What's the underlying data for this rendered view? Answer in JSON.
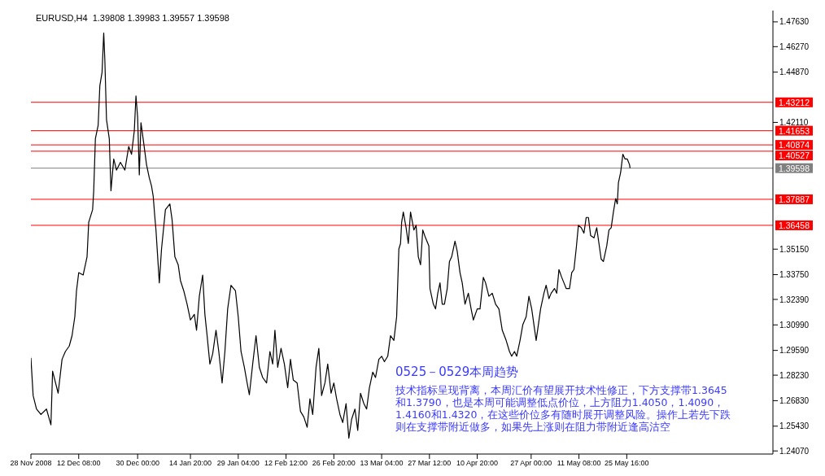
{
  "chart_data": {
    "type": "line",
    "title": "EURUSD,H4  1.39808 1.39983 1.39557 1.39598",
    "annotations": [
      "0525－0529本周趋势",
      "技术指标呈现背离，本周汇价有望展开技术性修正，下方支撑带1.3645和1.3790，也是本周可能调整低点价位，上方阻力1.4050，1.4090，1.4160和1.4320，在这些价位多有随时展开调整风险。操作上若先下跌则在支撑带附近做多，如果先上涨则在阻力带附近逢高沽空"
    ],
    "x": [
      "2008-11-28T00:00",
      "2008-11-28T16:00",
      "2008-11-29T16:00",
      "2008-12-01T00:00",
      "2008-12-02T16:00",
      "2008-12-04T00:00",
      "2008-12-04T12:00",
      "2008-12-06T04:00",
      "2008-12-07T08:00",
      "2008-12-08T08:00",
      "2008-12-09T12:00",
      "2008-12-10T08:00",
      "2008-12-11T04:00",
      "2008-12-11T16:00",
      "2008-12-12T08:00",
      "2008-12-13T16:00",
      "2008-12-14T20:00",
      "2008-12-15T08:00",
      "2008-12-16T12:00",
      "2008-12-16T20:00",
      "2008-12-17T08:00",
      "2008-12-18T04:00",
      "2008-12-18T16:00",
      "2008-12-19T08:00",
      "2008-12-19T20:00",
      "2008-12-20T04:00",
      "2008-12-20T16:00",
      "2008-12-21T12:00",
      "2008-12-22T00:00",
      "2008-12-22T20:00",
      "2008-12-23T16:00",
      "2008-12-24T20:00",
      "2008-12-26T04:00",
      "2008-12-27T08:00",
      "2008-12-28T04:00",
      "2008-12-29T00:00",
      "2008-12-29T12:00",
      "2008-12-30T00:00",
      "2008-12-30T12:00",
      "2008-12-31T00:00",
      "2008-12-31T20:00",
      "2009-01-01T16:00",
      "2009-01-02T12:00",
      "2009-01-03T04:00",
      "2009-01-03T16:00",
      "2009-01-04T04:00",
      "2009-01-04T12:00",
      "2009-01-05T12:00",
      "2009-01-06T04:00",
      "2009-01-07T08:00",
      "2009-01-08T16:00",
      "2009-01-09T08:00",
      "2009-01-10T04:00",
      "2009-01-11T04:00",
      "2009-01-11T20:00",
      "2009-01-12T20:00",
      "2009-01-13T20:00",
      "2009-01-14T20:00",
      "2009-01-16T00:00",
      "2009-01-16T16:00",
      "2009-01-17T12:00",
      "2009-01-18T12:00",
      "2009-01-19T04:00",
      "2009-01-19T20:00",
      "2009-01-20T16:00",
      "2009-01-21T12:00",
      "2009-01-22T12:00",
      "2009-01-23T08:00",
      "2009-01-24T08:00",
      "2009-01-25T04:00",
      "2009-01-26T00:00",
      "2009-01-27T00:00",
      "2009-01-28T08:00",
      "2009-01-29T04:00",
      "2009-01-30T00:00",
      "2009-01-31T00:00",
      "2009-01-31T20:00",
      "2009-02-01T12:00",
      "2009-02-02T12:00",
      "2009-02-03T12:00",
      "2009-02-04T12:00",
      "2009-02-05T12:00",
      "2009-02-06T16:00",
      "2009-02-07T16:00",
      "2009-02-08T12:00",
      "2009-02-09T04:00",
      "2009-02-10T00:00",
      "2009-02-11T00:00",
      "2009-02-12T00:00",
      "2009-02-13T00:00",
      "2009-02-13T20:00",
      "2009-02-14T16:00",
      "2009-02-15T20:00",
      "2009-02-16T20:00",
      "2009-02-17T20:00",
      "2009-02-18T20:00",
      "2009-02-19T16:00",
      "2009-02-20T12:00",
      "2009-02-21T12:00",
      "2009-02-22T08:00",
      "2009-02-23T04:00",
      "2009-02-24T04:00",
      "2009-02-25T00:00",
      "2009-02-26T00:00",
      "2009-02-26T20:00",
      "2009-02-27T16:00",
      "2009-02-28T16:00",
      "2009-03-01T12:00",
      "2009-03-02T12:00",
      "2009-03-03T08:00",
      "2009-03-04T04:00",
      "2009-03-05T04:00",
      "2009-03-06T00:00",
      "2009-03-06T20:00",
      "2009-03-07T20:00",
      "2009-03-08T16:00",
      "2009-03-09T12:00",
      "2009-03-10T12:00",
      "2009-03-11T08:00",
      "2009-03-12T08:00",
      "2009-03-13T04:00",
      "2009-03-14T00:00",
      "2009-03-15T00:00",
      "2009-03-15T20:00",
      "2009-03-16T20:00",
      "2009-03-17T16:00",
      "2009-03-18T08:00",
      "2009-03-18T20:00",
      "2009-03-19T04:00",
      "2009-03-19T16:00",
      "2009-03-20T12:00",
      "2009-03-21T04:00",
      "2009-03-21T20:00",
      "2009-03-22T20:00",
      "2009-03-23T12:00",
      "2009-03-24T04:00",
      "2009-03-24T20:00",
      "2009-03-25T12:00",
      "2009-03-26T08:00",
      "2009-03-27T08:00",
      "2009-03-27T16:00",
      "2009-03-28T16:00",
      "2009-03-29T08:00",
      "2009-03-30T00:00",
      "2009-03-30T16:00",
      "2009-03-31T08:00",
      "2009-04-01T00:00",
      "2009-04-01T20:00",
      "2009-04-02T12:00",
      "2009-04-03T04:00",
      "2009-04-04T04:00",
      "2009-04-04T20:00",
      "2009-04-05T16:00",
      "2009-04-06T08:00",
      "2009-04-07T04:00",
      "2009-04-08T04:00",
      "2009-04-09T00:00",
      "2009-04-09T16:00",
      "2009-04-10T20:00",
      "2009-04-11T16:00",
      "2009-04-12T16:00",
      "2009-04-13T08:00",
      "2009-04-14T08:00",
      "2009-04-15T08:00",
      "2009-04-16T08:00",
      "2009-04-17T08:00",
      "2009-04-18T08:00",
      "2009-04-19T12:00",
      "2009-04-20T12:00",
      "2009-04-21T04:00",
      "2009-04-22T00:00",
      "2009-04-22T16:00",
      "2009-04-23T16:00",
      "2009-04-24T12:00",
      "2009-04-25T12:00",
      "2009-04-26T08:00",
      "2009-04-27T04:00",
      "2009-04-27T20:00",
      "2009-04-28T12:00",
      "2009-04-29T04:00",
      "2009-04-29T20:00",
      "2009-04-30T20:00",
      "2009-05-01T12:00",
      "2009-05-02T08:00",
      "2009-05-03T00:00",
      "2009-05-04T00:00",
      "2009-05-04T16:00",
      "2009-05-05T08:00",
      "2009-05-06T04:00",
      "2009-05-06T20:00",
      "2009-05-07T12:00",
      "2009-05-08T12:00",
      "2009-05-09T04:00",
      "2009-05-09T20:00",
      "2009-05-10T12:00",
      "2009-05-11T04:00",
      "2009-05-12T00:00",
      "2009-05-12T20:00",
      "2009-05-13T12:00",
      "2009-05-14T04:00",
      "2009-05-14T20:00",
      "2009-05-15T20:00",
      "2009-05-16T16:00",
      "2009-05-17T08:00",
      "2009-05-18T00:00",
      "2009-05-18T16:00",
      "2009-05-19T16:00",
      "2009-05-20T08:00",
      "2009-05-21T00:00",
      "2009-05-21T16:00",
      "2009-05-22T08:00",
      "2009-05-22T20:00",
      "2009-05-23T04:00",
      "2009-05-23T20:00",
      "2009-05-24T12:00",
      "2009-05-25T04:00",
      "2009-05-25T20:00",
      "2009-05-26T12:00",
      "2009-05-26T16:00"
    ],
    "values": [
      1.2918,
      1.2711,
      1.2637,
      1.2607,
      1.2637,
      1.255,
      1.2845,
      1.2724,
      1.291,
      1.2953,
      1.2983,
      1.304,
      1.3144,
      1.3286,
      1.3386,
      1.3373,
      1.3473,
      1.3663,
      1.3732,
      1.3836,
      1.4122,
      1.4196,
      1.4412,
      1.4486,
      1.4702,
      1.4555,
      1.4226,
      1.4122,
      1.3836,
      1.401,
      1.3949,
      1.3992,
      1.3949,
      1.4079,
      1.4036,
      1.4165,
      1.4356,
      1.4239,
      1.3923,
      1.4209,
      1.4096,
      1.3979,
      1.3906,
      1.3862,
      1.3806,
      1.3689,
      1.362,
      1.333,
      1.3516,
      1.3732,
      1.3763,
      1.3676,
      1.3473,
      1.3429,
      1.3343,
      1.3286,
      1.3213,
      1.3126,
      1.3157,
      1.307,
      1.3256,
      1.3373,
      1.3157,
      1.304,
      1.2884,
      1.294,
      1.307,
      1.2953,
      1.278,
      1.2953,
      1.3187,
      1.3317,
      1.3286,
      1.3144,
      1.2953,
      1.2866,
      1.278,
      1.2715,
      1.2884,
      1.304,
      1.2866,
      1.281,
      1.278,
      1.2953,
      1.2884,
      1.307,
      1.2866,
      1.297,
      1.2884,
      1.2754,
      1.291,
      1.2797,
      1.278,
      1.2624,
      1.2594,
      1.2537,
      1.2693,
      1.2607,
      1.2866,
      1.297,
      1.2711,
      1.278,
      1.2884,
      1.2724,
      1.278,
      1.2693,
      1.2607,
      1.2563,
      1.2667,
      1.2477,
      1.2581,
      1.2637,
      1.252,
      1.2724,
      1.2667,
      1.2637,
      1.2754,
      1.284,
      1.281,
      1.291,
      1.2927,
      1.2897,
      1.2927,
      1.304,
      1.3014,
      1.3144,
      1.3516,
      1.3546,
      1.3663,
      1.3719,
      1.3633,
      1.3546,
      1.3719,
      1.362,
      1.3646,
      1.3473,
      1.3429,
      1.362,
      1.3577,
      1.3533,
      1.3299,
      1.3213,
      1.3187,
      1.3273,
      1.333,
      1.3213,
      1.3213,
      1.3299,
      1.3447,
      1.3473,
      1.3559,
      1.3503,
      1.3386,
      1.333,
      1.3213,
      1.3273,
      1.3187,
      1.3126,
      1.3187,
      1.3187,
      1.336,
      1.333,
      1.3256,
      1.3273,
      1.3213,
      1.3187,
      1.307,
      1.3014,
      1.2953,
      1.2927,
      1.2953,
      1.2927,
      1.3014,
      1.31,
      1.3144,
      1.3256,
      1.3187,
      1.31,
      1.3014,
      1.31,
      1.3187,
      1.3273,
      1.3317,
      1.3243,
      1.3273,
      1.3299,
      1.3273,
      1.3403,
      1.336,
      1.333,
      1.3299,
      1.3299,
      1.3386,
      1.3403,
      1.3516,
      1.3646,
      1.3633,
      1.3603,
      1.3689,
      1.3689,
      1.359,
      1.3577,
      1.3633,
      1.3546,
      1.346,
      1.3447,
      1.3533,
      1.362,
      1.3633,
      1.3719,
      1.3793,
      1.3763,
      1.388,
      1.3936,
      1.4036,
      1.401,
      1.401,
      1.3979,
      1.396
    ],
    "color": "#000000",
    "marker": "none",
    "line_style": "solid",
    "grid": false,
    "legend": false,
    "xlim": [
      "2008-11-28T00:00",
      "2009-07-08T12:00"
    ],
    "xticks": [
      {
        "value": "2008-11-28T00:00",
        "label": "28 Nov 2008"
      },
      {
        "value": "2008-12-12T08:00",
        "label": "12 Dec 08:00"
      },
      {
        "value": "2008-12-30T00:00",
        "label": "30 Dec 00:00"
      },
      {
        "value": "2009-01-14T20:00",
        "label": "14 Jan 20:00"
      },
      {
        "value": "2009-01-29T04:00",
        "label": "29 Jan 04:00"
      },
      {
        "value": "2009-02-12T12:00",
        "label": "12 Feb 12:00"
      },
      {
        "value": "2009-02-26T20:00",
        "label": "26 Feb 20:00"
      },
      {
        "value": "2009-03-13T04:00",
        "label": "13 Mar 04:00"
      },
      {
        "value": "2009-03-27T12:00",
        "label": "27 Mar 12:00"
      },
      {
        "value": "2009-04-10T20:00",
        "label": "10 Apr 20:00"
      },
      {
        "value": "2009-04-27T00:00",
        "label": "27 Apr 00:00"
      },
      {
        "value": "2009-05-11T08:00",
        "label": "11 May 08:00"
      },
      {
        "value": "2009-05-25T16:00",
        "label": "25 May 16:00"
      }
    ],
    "ylim": [
      1.239,
      1.4825
    ],
    "yticks": [
      {
        "value": 1.2407,
        "label": "1.24070"
      },
      {
        "value": 1.2543,
        "label": "1.25430"
      },
      {
        "value": 1.2683,
        "label": "1.26830"
      },
      {
        "value": 1.2823,
        "label": "1.28230"
      },
      {
        "value": 1.2959,
        "label": "1.29590"
      },
      {
        "value": 1.3099,
        "label": "1.30990"
      },
      {
        "value": 1.3239,
        "label": "1.32390"
      },
      {
        "value": 1.3375,
        "label": "1.33750"
      },
      {
        "value": 1.3515,
        "label": "1.35150"
      },
      {
        "value": 1.4211,
        "label": "1.42110"
      },
      {
        "value": 1.4487,
        "label": "1.44870"
      },
      {
        "value": 1.4627,
        "label": "1.46270"
      },
      {
        "value": 1.4763,
        "label": "1.47630"
      }
    ],
    "ref_lines": [
      {
        "axis": "y",
        "value": 1.43212,
        "label": "1.43212",
        "color": "#ff0000"
      },
      {
        "axis": "y",
        "value": 1.41653,
        "label": "1.41653",
        "color": "#ff0000"
      },
      {
        "axis": "y",
        "value": 1.40874,
        "label": "1.40874",
        "color": "#ff0000"
      },
      {
        "axis": "y",
        "value": 1.40527,
        "label": "1.40527",
        "color": "#ff0000"
      },
      {
        "axis": "y",
        "value": 1.39598,
        "label": "1.39598",
        "color": "#808080"
      },
      {
        "axis": "y",
        "value": 1.37887,
        "label": "1.37887",
        "color": "#ff0000"
      },
      {
        "axis": "y",
        "value": 1.36458,
        "label": "1.36458",
        "color": "#ff0000"
      }
    ]
  }
}
